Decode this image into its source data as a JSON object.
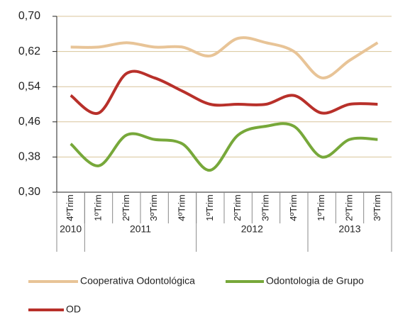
{
  "chart_data": {
    "type": "line",
    "categories": [
      "4ºTrim",
      "1ºTrim",
      "2ºTrim",
      "3ºTrim",
      "4ºTrim",
      "1ºTrim",
      "2ºTrim",
      "3ºTrim",
      "4ºTrim",
      "1ºTrim",
      "2ºTrim",
      "3ºTrim"
    ],
    "groups": [
      {
        "label": "2010",
        "count": 1
      },
      {
        "label": "2011",
        "count": 4
      },
      {
        "label": "2012",
        "count": 4
      },
      {
        "label": "2013",
        "count": 3
      }
    ],
    "series": [
      {
        "name": "Cooperativa Odontológica",
        "color": "#e8c497",
        "values": [
          0.63,
          0.63,
          0.64,
          0.63,
          0.63,
          0.61,
          0.65,
          0.64,
          0.62,
          0.56,
          0.6,
          0.64
        ]
      },
      {
        "name": "Odontologia de Grupo",
        "color": "#77a83a",
        "values": [
          0.41,
          0.36,
          0.43,
          0.42,
          0.41,
          0.35,
          0.43,
          0.45,
          0.45,
          0.38,
          0.42,
          0.42
        ]
      },
      {
        "name": "OD",
        "color": "#b8302a",
        "values": [
          0.52,
          0.48,
          0.57,
          0.56,
          0.53,
          0.5,
          0.5,
          0.5,
          0.52,
          0.48,
          0.5,
          0.5
        ]
      }
    ],
    "ylim": [
      0.3,
      0.7
    ],
    "yticks": [
      {
        "value": 0.3,
        "label": "0,30"
      },
      {
        "value": 0.38,
        "label": "0,38"
      },
      {
        "value": 0.46,
        "label": "0,46"
      },
      {
        "value": 0.54,
        "label": "0,54"
      },
      {
        "value": 0.62,
        "label": "0,62"
      },
      {
        "value": 0.7,
        "label": "0,70"
      }
    ],
    "grid": true,
    "smooth": true,
    "legend": "bottom"
  }
}
